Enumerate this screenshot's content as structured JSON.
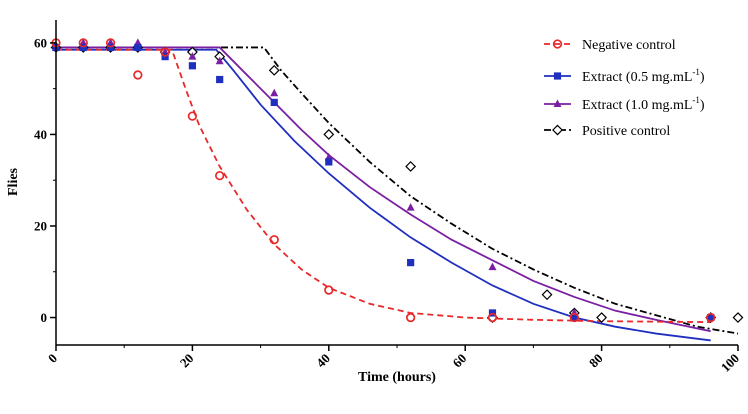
{
  "chart_data": {
    "type": "scatter",
    "title": "",
    "xlabel": "Time (hours)",
    "ylabel": "Flies",
    "xlim": [
      0,
      100
    ],
    "ylim": [
      -6,
      65
    ],
    "xticks": [
      0,
      20,
      40,
      60,
      80,
      100
    ],
    "yticks": [
      0,
      20,
      40,
      60
    ],
    "grid": false,
    "legend_position": "top-right",
    "series": [
      {
        "name": "Negative control",
        "legend_main": "Negative control",
        "legend_sup": "",
        "legend_close": "",
        "color": "#e8282a",
        "marker": "circle",
        "line_style": "dashed",
        "points": [
          [
            0,
            60
          ],
          [
            4,
            60
          ],
          [
            8,
            60
          ],
          [
            12,
            53
          ],
          [
            16,
            58
          ],
          [
            20,
            44
          ],
          [
            24,
            31
          ],
          [
            32,
            17
          ],
          [
            40,
            6
          ],
          [
            52,
            0
          ],
          [
            64,
            0
          ],
          [
            76,
            0
          ],
          [
            96,
            0
          ]
        ],
        "fit": [
          [
            0,
            58.5
          ],
          [
            17,
            58.5
          ],
          [
            19,
            50
          ],
          [
            21,
            42
          ],
          [
            24,
            33
          ],
          [
            28,
            23.5
          ],
          [
            32,
            16
          ],
          [
            36,
            10.5
          ],
          [
            40,
            6.5
          ],
          [
            46,
            3
          ],
          [
            52,
            1
          ],
          [
            60,
            0
          ],
          [
            70,
            -0.5
          ],
          [
            80,
            -0.8
          ],
          [
            96,
            -1
          ]
        ]
      },
      {
        "name": "Extract (0.5 mg.mL-1)",
        "legend_main": "Extract (0.5 mg.mL",
        "legend_sup": "-1",
        "legend_close": ")",
        "color": "#1f2fbf",
        "marker": "square",
        "line_style": "solid",
        "points": [
          [
            0,
            59
          ],
          [
            4,
            59
          ],
          [
            8,
            59
          ],
          [
            12,
            59
          ],
          [
            16,
            57
          ],
          [
            20,
            55
          ],
          [
            24,
            52
          ],
          [
            32,
            47
          ],
          [
            40,
            34
          ],
          [
            52,
            12
          ],
          [
            64,
            1
          ],
          [
            76,
            0
          ],
          [
            96,
            0
          ]
        ],
        "fit": [
          [
            0,
            58.5
          ],
          [
            23.5,
            58.5
          ],
          [
            26,
            54
          ],
          [
            30,
            46.5
          ],
          [
            35,
            38.5
          ],
          [
            40,
            31.5
          ],
          [
            46,
            24
          ],
          [
            52,
            17.5
          ],
          [
            58,
            12
          ],
          [
            64,
            7
          ],
          [
            70,
            3
          ],
          [
            76,
            0
          ],
          [
            82,
            -2
          ],
          [
            88,
            -3.5
          ],
          [
            96,
            -5
          ]
        ]
      },
      {
        "name": "Extract (1.0 mg.mL-1)",
        "legend_main": "Extract (1.0 mg.mL",
        "legend_sup": "-1",
        "legend_close": ")",
        "color": "#7b1fa2",
        "marker": "triangle",
        "line_style": "solid",
        "points": [
          [
            0,
            59
          ],
          [
            4,
            60
          ],
          [
            8,
            60
          ],
          [
            12,
            60
          ],
          [
            16,
            58
          ],
          [
            20,
            57
          ],
          [
            24,
            56
          ],
          [
            32,
            49
          ],
          [
            40,
            35
          ],
          [
            52,
            24
          ],
          [
            64,
            11
          ],
          [
            76,
            1
          ],
          [
            96,
            0
          ]
        ],
        "fit": [
          [
            0,
            59
          ],
          [
            24,
            59
          ],
          [
            28,
            53
          ],
          [
            32,
            47
          ],
          [
            36,
            41
          ],
          [
            40,
            35.5
          ],
          [
            46,
            28.5
          ],
          [
            52,
            22.5
          ],
          [
            58,
            17
          ],
          [
            64,
            12.5
          ],
          [
            70,
            8
          ],
          [
            76,
            4.5
          ],
          [
            82,
            1.5
          ],
          [
            88,
            -0.5
          ],
          [
            96,
            -3
          ]
        ]
      },
      {
        "name": "Positive control",
        "legend_main": "Positive control",
        "legend_sup": "",
        "legend_close": "",
        "color": "#000000",
        "marker": "diamond",
        "line_style": "dashdot",
        "points": [
          [
            0,
            59
          ],
          [
            4,
            59
          ],
          [
            8,
            59
          ],
          [
            12,
            59
          ],
          [
            16,
            58
          ],
          [
            20,
            58
          ],
          [
            24,
            57
          ],
          [
            32,
            54
          ],
          [
            40,
            40
          ],
          [
            52,
            33
          ],
          [
            64,
            0
          ],
          [
            72,
            5
          ],
          [
            76,
            1
          ],
          [
            80,
            0
          ],
          [
            96,
            0
          ],
          [
            100,
            0
          ]
        ],
        "fit": [
          [
            0,
            59
          ],
          [
            30.5,
            59
          ],
          [
            33,
            54
          ],
          [
            36,
            49
          ],
          [
            40,
            42.5
          ],
          [
            46,
            34
          ],
          [
            52,
            26.5
          ],
          [
            58,
            20.5
          ],
          [
            64,
            15
          ],
          [
            70,
            10.5
          ],
          [
            76,
            6.5
          ],
          [
            82,
            3
          ],
          [
            88,
            0.5
          ],
          [
            94,
            -2
          ],
          [
            100,
            -3.5
          ]
        ]
      }
    ]
  }
}
